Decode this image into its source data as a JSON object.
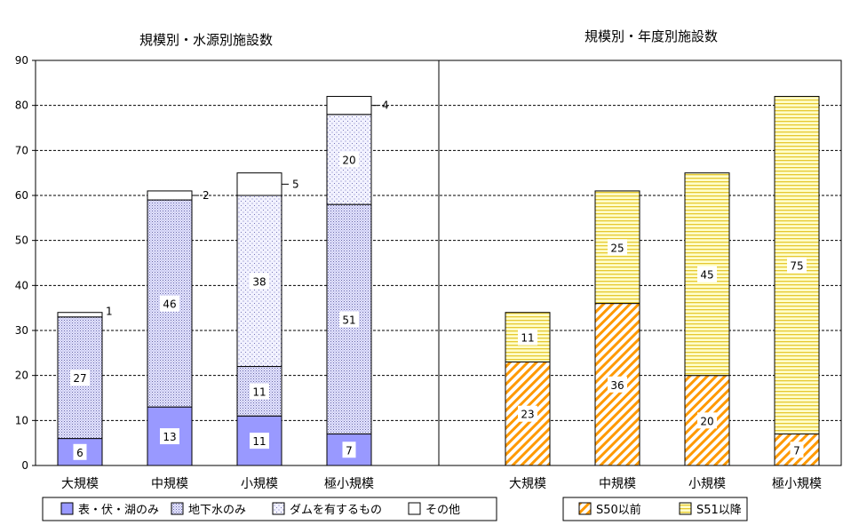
{
  "chart_data": [
    {
      "type": "bar",
      "stacked": true,
      "title": "規模別・水源別施設数",
      "categories": [
        "大規模",
        "中規模",
        "小規模",
        "極小規模"
      ],
      "ylim": [
        0,
        90
      ],
      "yticks": [
        0,
        10,
        20,
        30,
        40,
        50,
        60,
        70,
        80,
        90
      ],
      "grid": "horizontal dashed",
      "legend_position": "bottom",
      "series": [
        {
          "name": "表・伏・湖のみ",
          "values": [
            6,
            13,
            11,
            7
          ],
          "color": "#9999ff",
          "pattern": "solid"
        },
        {
          "name": "地下水のみ",
          "values": [
            27,
            46,
            11,
            51
          ],
          "color": "#ccccff",
          "pattern": "dense-dots"
        },
        {
          "name": "ダムを有するもの",
          "values": [
            0,
            0,
            38,
            20
          ],
          "color": "#ccccff",
          "pattern": "sparse-dots"
        },
        {
          "name": "その他",
          "values": [
            1,
            2,
            5,
            4
          ],
          "color": "#ffffff",
          "pattern": "solid"
        }
      ]
    },
    {
      "type": "bar",
      "stacked": true,
      "title": "規模別・年度別施設数",
      "categories": [
        "大規模",
        "中規模",
        "小規模",
        "極小規模"
      ],
      "ylim": [
        0,
        90
      ],
      "grid": "horizontal dashed",
      "legend_position": "bottom",
      "series": [
        {
          "name": "S50以前",
          "values": [
            23,
            36,
            20,
            7
          ],
          "color": "#ff9900",
          "pattern": "diagonal-stripes"
        },
        {
          "name": "S51以降",
          "values": [
            11,
            25,
            45,
            75
          ],
          "color": "#ffff99",
          "pattern": "horizontal-stripes"
        }
      ]
    }
  ]
}
